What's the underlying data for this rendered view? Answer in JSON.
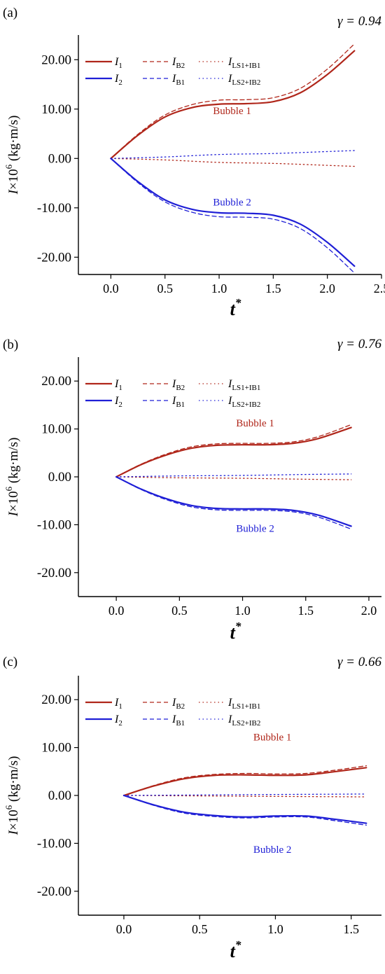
{
  "chart_data": [
    {
      "type": "line",
      "panel_label": "(a)",
      "gamma": "γ = 0.94",
      "xlabel": "t",
      "xlabel_sup": "*",
      "ylabel": "I×10",
      "ylabel_sup": "6",
      "ylabel_unit": "(kg·m/s)",
      "xlim": [
        -0.3,
        2.5
      ],
      "ylim": [
        -23.5,
        25
      ],
      "xticks": [
        "0.0",
        "0.5",
        "1.0",
        "1.5",
        "2.0",
        "2.5"
      ],
      "xtick_values": [
        0.0,
        0.5,
        1.0,
        1.5,
        2.0,
        2.5
      ],
      "yticks": [
        "20.00",
        "10.00",
        "0.00",
        "-10.00",
        "-20.00"
      ],
      "ytick_values": [
        20,
        10,
        0,
        -10,
        -20
      ],
      "legend": [
        {
          "name": "I",
          "sub": "1",
          "color": "#b0261a",
          "style": "solid"
        },
        {
          "name": "I",
          "sub": "B2",
          "color": "#b0261a",
          "style": "dashed"
        },
        {
          "name": "I",
          "sub": "LS1+IB1",
          "color": "#b0261a",
          "style": "dotted"
        },
        {
          "name": "I",
          "sub": "2",
          "color": "#1f1fd6",
          "style": "solid"
        },
        {
          "name": "I",
          "sub": "B1",
          "color": "#1f1fd6",
          "style": "dashed"
        },
        {
          "name": "I",
          "sub": "LS2+IB2",
          "color": "#1f1fd6",
          "style": "dotted"
        }
      ],
      "annotations": [
        {
          "text": "Bubble 1",
          "x": 1.12,
          "y": 9.0,
          "color": "#b0261a"
        },
        {
          "text": "Bubble 2",
          "x": 1.12,
          "y": -9.5,
          "color": "#1f1fd6"
        }
      ],
      "series": [
        {
          "name": "I1",
          "color": "#b0261a",
          "style": "solid",
          "x": [
            0,
            0.25,
            0.5,
            0.75,
            1.0,
            1.25,
            1.5,
            1.75,
            2.0,
            2.25
          ],
          "y": [
            0,
            4.7,
            8.4,
            10.3,
            11.0,
            11.1,
            11.5,
            13.3,
            17.0,
            21.8
          ]
        },
        {
          "name": "IB2",
          "color": "#b0261a",
          "style": "dashed",
          "x": [
            0,
            0.25,
            0.5,
            0.75,
            1.0,
            1.25,
            1.5,
            1.75,
            2.0,
            2.25
          ],
          "y": [
            0,
            4.9,
            8.8,
            10.9,
            11.8,
            11.9,
            12.3,
            14.2,
            18.1,
            23.2
          ]
        },
        {
          "name": "ILS1+IB1",
          "color": "#b0261a",
          "style": "dotted",
          "x": [
            0,
            0.5,
            1.0,
            1.5,
            2.0,
            2.25
          ],
          "y": [
            0,
            -0.3,
            -0.8,
            -1.0,
            -1.4,
            -1.6
          ]
        },
        {
          "name": "I2",
          "color": "#1f1fd6",
          "style": "solid",
          "x": [
            0,
            0.25,
            0.5,
            0.75,
            1.0,
            1.25,
            1.5,
            1.75,
            2.0,
            2.25
          ],
          "y": [
            0,
            -4.7,
            -8.4,
            -10.3,
            -11.0,
            -11.1,
            -11.5,
            -13.3,
            -17.0,
            -21.8
          ]
        },
        {
          "name": "IB1",
          "color": "#1f1fd6",
          "style": "dashed",
          "x": [
            0,
            0.25,
            0.5,
            0.75,
            1.0,
            1.25,
            1.5,
            1.75,
            2.0,
            2.25
          ],
          "y": [
            0,
            -4.9,
            -8.8,
            -10.9,
            -11.8,
            -11.9,
            -12.3,
            -14.2,
            -18.1,
            -23.2
          ]
        },
        {
          "name": "ILS2+IB2",
          "color": "#1f1fd6",
          "style": "dotted",
          "x": [
            0,
            0.5,
            1.0,
            1.5,
            2.0,
            2.25
          ],
          "y": [
            0,
            0.3,
            0.8,
            1.0,
            1.4,
            1.6
          ]
        }
      ]
    },
    {
      "type": "line",
      "panel_label": "(b)",
      "gamma": "γ = 0.76",
      "xlabel": "t",
      "xlabel_sup": "*",
      "ylabel": "I×10",
      "ylabel_sup": "6",
      "ylabel_unit": "(kg·m/s)",
      "xlim": [
        -0.3,
        2.1
      ],
      "ylim": [
        -25,
        25
      ],
      "xticks": [
        "0.0",
        "0.5",
        "1.0",
        "1.5",
        "2.0"
      ],
      "xtick_values": [
        0.0,
        0.5,
        1.0,
        1.5,
        2.0
      ],
      "yticks": [
        "20.00",
        "10.00",
        "0.00",
        "-10.00",
        "-20.00"
      ],
      "ytick_values": [
        20,
        10,
        0,
        -10,
        -20
      ],
      "legend": [
        {
          "name": "I",
          "sub": "1",
          "color": "#b0261a",
          "style": "solid"
        },
        {
          "name": "I",
          "sub": "B2",
          "color": "#b0261a",
          "style": "dashed"
        },
        {
          "name": "I",
          "sub": "LS1+IB1",
          "color": "#b0261a",
          "style": "dotted"
        },
        {
          "name": "I",
          "sub": "2",
          "color": "#1f1fd6",
          "style": "solid"
        },
        {
          "name": "I",
          "sub": "B1",
          "color": "#1f1fd6",
          "style": "dashed"
        },
        {
          "name": "I",
          "sub": "LS2+IB2",
          "color": "#1f1fd6",
          "style": "dotted"
        }
      ],
      "annotations": [
        {
          "text": "Bubble 1",
          "x": 1.1,
          "y": 10.5,
          "color": "#b0261a"
        },
        {
          "text": "Bubble 2",
          "x": 1.1,
          "y": -11.5,
          "color": "#1f1fd6"
        }
      ],
      "series": [
        {
          "name": "I1",
          "color": "#b0261a",
          "style": "solid",
          "x": [
            0,
            0.2,
            0.4,
            0.6,
            0.8,
            1.0,
            1.2,
            1.4,
            1.6,
            1.86
          ],
          "y": [
            0,
            2.6,
            4.6,
            6.0,
            6.6,
            6.7,
            6.7,
            7.0,
            8.0,
            10.3
          ]
        },
        {
          "name": "IB2",
          "color": "#b0261a",
          "style": "dashed",
          "x": [
            0,
            0.2,
            0.4,
            0.6,
            0.8,
            1.0,
            1.2,
            1.4,
            1.6,
            1.86
          ],
          "y": [
            0,
            2.7,
            4.8,
            6.3,
            6.9,
            7.0,
            7.0,
            7.3,
            8.4,
            10.9
          ]
        },
        {
          "name": "ILS1+IB1",
          "color": "#b0261a",
          "style": "dotted",
          "x": [
            0,
            0.5,
            1.0,
            1.5,
            1.86
          ],
          "y": [
            0,
            -0.2,
            -0.3,
            -0.5,
            -0.6
          ]
        },
        {
          "name": "I2",
          "color": "#1f1fd6",
          "style": "solid",
          "x": [
            0,
            0.2,
            0.4,
            0.6,
            0.8,
            1.0,
            1.2,
            1.4,
            1.6,
            1.86
          ],
          "y": [
            0,
            -2.6,
            -4.6,
            -6.0,
            -6.6,
            -6.7,
            -6.7,
            -7.0,
            -8.0,
            -10.3
          ]
        },
        {
          "name": "IB1",
          "color": "#1f1fd6",
          "style": "dashed",
          "x": [
            0,
            0.2,
            0.4,
            0.6,
            0.8,
            1.0,
            1.2,
            1.4,
            1.6,
            1.86
          ],
          "y": [
            0,
            -2.7,
            -4.8,
            -6.3,
            -6.9,
            -7.0,
            -7.0,
            -7.3,
            -8.4,
            -10.9
          ]
        },
        {
          "name": "ILS2+IB2",
          "color": "#1f1fd6",
          "style": "dotted",
          "x": [
            0,
            0.5,
            1.0,
            1.5,
            1.86
          ],
          "y": [
            0,
            0.2,
            0.3,
            0.5,
            0.6
          ]
        }
      ]
    },
    {
      "type": "line",
      "panel_label": "(c)",
      "gamma": "γ = 0.66",
      "xlabel": "t",
      "xlabel_sup": "*",
      "ylabel": "I×10",
      "ylabel_sup": "6",
      "ylabel_unit": "(kg·m/s)",
      "xlim": [
        -0.3,
        1.7
      ],
      "ylim": [
        -25,
        25
      ],
      "xticks": [
        "0.0",
        "0.5",
        "1.0",
        "1.5"
      ],
      "xtick_values": [
        0.0,
        0.5,
        1.0,
        1.5
      ],
      "yticks": [
        "20.00",
        "10.00",
        "0.00",
        "-10.00",
        "-20.00"
      ],
      "ytick_values": [
        20,
        10,
        0,
        -10,
        -20
      ],
      "legend": [
        {
          "name": "I",
          "sub": "1",
          "color": "#b0261a",
          "style": "solid"
        },
        {
          "name": "I",
          "sub": "B2",
          "color": "#b0261a",
          "style": "dashed"
        },
        {
          "name": "I",
          "sub": "LS1+IB1",
          "color": "#b0261a",
          "style": "dotted"
        },
        {
          "name": "I",
          "sub": "2",
          "color": "#1f1fd6",
          "style": "solid"
        },
        {
          "name": "I",
          "sub": "B1",
          "color": "#1f1fd6",
          "style": "dashed"
        },
        {
          "name": "I",
          "sub": "LS2+IB2",
          "color": "#1f1fd6",
          "style": "dotted"
        }
      ],
      "annotations": [
        {
          "text": "Bubble 1",
          "x": 0.98,
          "y": 11.5,
          "color": "#b0261a"
        },
        {
          "text": "Bubble 2",
          "x": 0.98,
          "y": -12.0,
          "color": "#1f1fd6"
        }
      ],
      "series": [
        {
          "name": "I1",
          "color": "#b0261a",
          "style": "solid",
          "x": [
            0,
            0.2,
            0.4,
            0.6,
            0.8,
            1.0,
            1.2,
            1.4,
            1.6
          ],
          "y": [
            0,
            2.0,
            3.5,
            4.2,
            4.3,
            4.2,
            4.3,
            5.0,
            5.8
          ]
        },
        {
          "name": "IB2",
          "color": "#b0261a",
          "style": "dashed",
          "x": [
            0,
            0.2,
            0.4,
            0.6,
            0.8,
            1.0,
            1.2,
            1.4,
            1.6
          ],
          "y": [
            0,
            2.1,
            3.7,
            4.4,
            4.6,
            4.5,
            4.6,
            5.3,
            6.2
          ]
        },
        {
          "name": "ILS1+IB1",
          "color": "#b0261a",
          "style": "dotted",
          "x": [
            0,
            0.5,
            1.0,
            1.6
          ],
          "y": [
            0,
            -0.1,
            -0.2,
            -0.3
          ]
        },
        {
          "name": "I2",
          "color": "#1f1fd6",
          "style": "solid",
          "x": [
            0,
            0.2,
            0.4,
            0.6,
            0.8,
            1.0,
            1.2,
            1.4,
            1.6
          ],
          "y": [
            0,
            -2.0,
            -3.5,
            -4.2,
            -4.5,
            -4.3,
            -4.3,
            -5.0,
            -5.8
          ]
        },
        {
          "name": "IB1",
          "color": "#1f1fd6",
          "style": "dashed",
          "x": [
            0,
            0.2,
            0.4,
            0.6,
            0.8,
            1.0,
            1.2,
            1.4,
            1.6
          ],
          "y": [
            0,
            -2.1,
            -3.7,
            -4.4,
            -4.7,
            -4.5,
            -4.5,
            -5.3,
            -6.2
          ]
        },
        {
          "name": "ILS2+IB2",
          "color": "#1f1fd6",
          "style": "dotted",
          "x": [
            0,
            0.5,
            1.0,
            1.6
          ],
          "y": [
            0,
            0.1,
            0.2,
            0.3
          ]
        }
      ]
    }
  ]
}
